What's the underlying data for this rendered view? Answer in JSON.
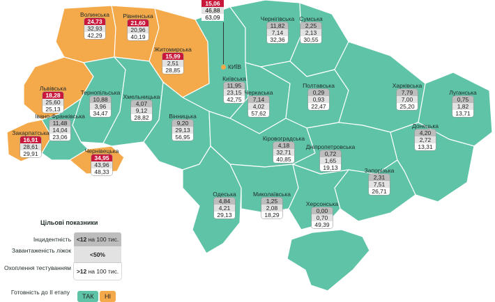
{
  "colors": {
    "ready": "#5fc4a7",
    "not_ready": "#f4a94b",
    "border": "#ffffff",
    "bad_value": "#c8173a"
  },
  "kyiv": {
    "name": "КИЇВ",
    "v1": "15,06",
    "v2": "46,88",
    "v3": "63,09"
  },
  "regions": [
    {
      "name": "Волинська",
      "v1": "24,73",
      "v2": "32,93",
      "v3": "42,29",
      "bad": true,
      "status": "no"
    },
    {
      "name": "Рівненська",
      "v1": "21,60",
      "v2": "20,96",
      "v3": "40,19",
      "bad": true,
      "status": "no"
    },
    {
      "name": "Житомирська",
      "v1": "15,99",
      "v2": "2,51",
      "v3": "28,85",
      "bad": true,
      "status": "no"
    },
    {
      "name": "Львівська",
      "v1": "18,28",
      "v2": "25,60",
      "v3": "25,13",
      "bad": true,
      "status": "no"
    },
    {
      "name": "Закарпатська",
      "v1": "16,91",
      "v2": "28,61",
      "v3": "29,91",
      "bad": true,
      "status": "no"
    },
    {
      "name": "Чернівецька",
      "v1": "34,95",
      "v2": "43,96",
      "v3": "48,33",
      "bad": true,
      "status": "no"
    },
    {
      "name": "Тернопільська",
      "v1": "10,88",
      "v2": "3,96",
      "v3": "34,47",
      "bad": false,
      "status": "yes"
    },
    {
      "name": "Хмельницька",
      "v1": "4,07",
      "v2": "9,12",
      "v3": "28,82",
      "bad": false,
      "status": "yes"
    },
    {
      "name": "Івано-Франківська",
      "v1": "11,48",
      "v2": "14,04",
      "v3": "23,06",
      "bad": false,
      "status": "yes"
    },
    {
      "name": "Вінницька",
      "v1": "9,20",
      "v2": "29,13",
      "v3": "56,95",
      "bad": false,
      "status": "yes"
    },
    {
      "name": "Київська",
      "v1": "11,95",
      "v2": "23,15",
      "v3": "42,75",
      "bad": false,
      "status": "yes"
    },
    {
      "name": "Чернігівська",
      "v1": "11,82",
      "v2": "7,14",
      "v3": "32,36",
      "bad": false,
      "status": "yes"
    },
    {
      "name": "Сумська",
      "v1": "2,25",
      "v2": "2,13",
      "v3": "30,55",
      "bad": false,
      "status": "yes"
    },
    {
      "name": "Черкаська",
      "v1": "7,14",
      "v2": "4,02",
      "v3": "57,62",
      "bad": false,
      "status": "yes"
    },
    {
      "name": "Полтавська",
      "v1": "0,29",
      "v2": "0,93",
      "v3": "22,47",
      "bad": false,
      "status": "yes"
    },
    {
      "name": "Харківська",
      "v1": "7,79",
      "v2": "7,00",
      "v3": "25,20",
      "bad": false,
      "status": "yes"
    },
    {
      "name": "Луганська",
      "v1": "0,75",
      "v2": "1,82",
      "v3": "13,71",
      "bad": false,
      "status": "yes"
    },
    {
      "name": "Кіровоградська",
      "v1": "4,18",
      "v2": "32,71",
      "v3": "40,85",
      "bad": false,
      "status": "yes"
    },
    {
      "name": "Дніпропетровська",
      "v1": "0,72",
      "v2": "1,65",
      "v3": "19,13",
      "bad": false,
      "status": "yes"
    },
    {
      "name": "Донецька",
      "v1": "4,20",
      "v2": "2,72",
      "v3": "13,31",
      "bad": false,
      "status": "yes"
    },
    {
      "name": "Запорізька",
      "v1": "2,31",
      "v2": "7,51",
      "v3": "26,71",
      "bad": false,
      "status": "yes"
    },
    {
      "name": "Одеська",
      "v1": "4,84",
      "v2": "4,21",
      "v3": "29,13",
      "bad": false,
      "status": "yes"
    },
    {
      "name": "Миколаївська",
      "v1": "1,25",
      "v2": "2,08",
      "v3": "18,29",
      "bad": false,
      "status": "yes"
    },
    {
      "name": "Херсонська",
      "v1": "0,00",
      "v2": "0,70",
      "v3": "49,39",
      "bad": false,
      "status": "yes"
    }
  ],
  "legend": {
    "title": "Цільові показники",
    "rows": [
      {
        "label": "Інцидентність",
        "value_bold": "<12",
        "value_rest": " на 100 тис."
      },
      {
        "label": "Завантаженість ліжок",
        "value_bold": "<50%",
        "value_rest": ""
      },
      {
        "label": "Охоплення тестуванням",
        "value_bold": ">12",
        "value_rest": " на 100 тис."
      }
    ],
    "readiness_label": "Готовність до ІІ етапу",
    "yes": "ТАК",
    "no": "НІ"
  }
}
